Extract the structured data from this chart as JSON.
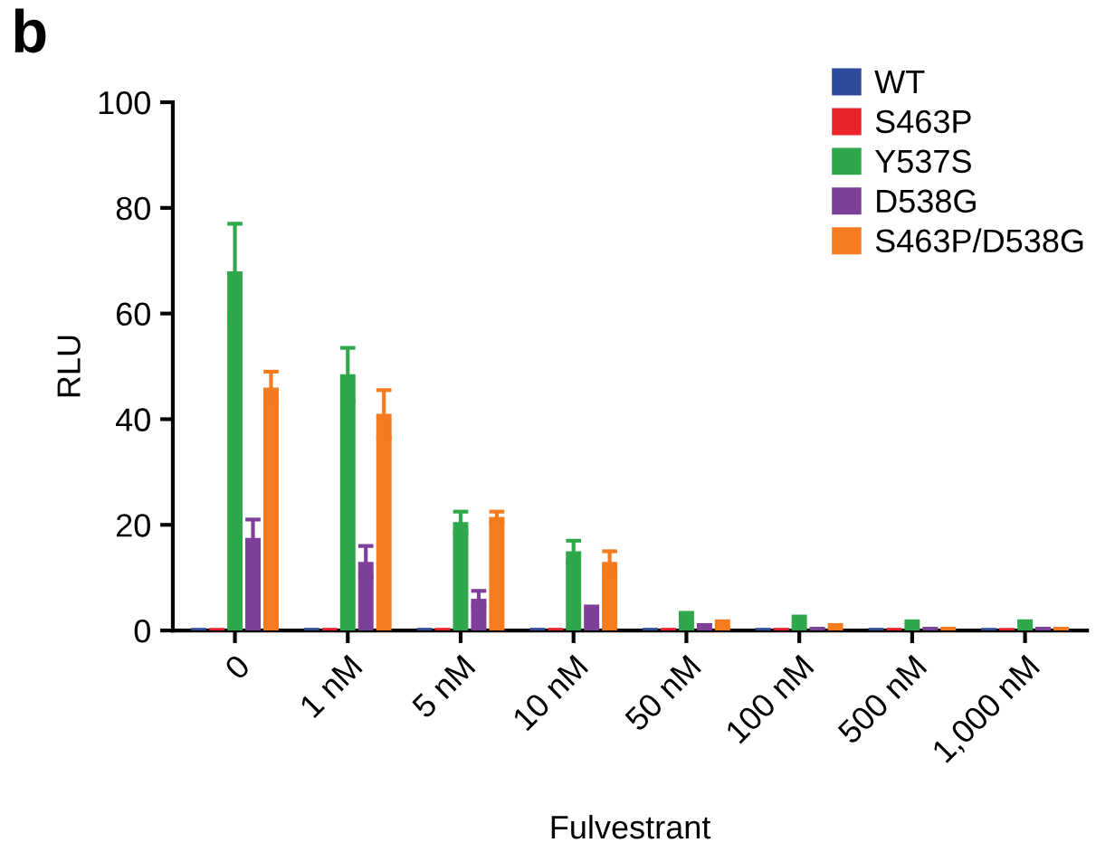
{
  "chart_data": {
    "type": "bar",
    "xlabel": "Fulvestrant",
    "ylabel": "RLU",
    "annotations": [
      "b"
    ],
    "categories": [
      "0",
      "1 nM",
      "5 nM",
      "10 nM",
      "50 nM",
      "100 nM",
      "500 nM",
      "1,000 nM"
    ],
    "series": [
      {
        "name": "WT",
        "color": "#2e4a9b",
        "values": [
          0.5,
          0.5,
          0.5,
          0.5,
          0.5,
          0.5,
          0.5,
          0.5
        ]
      },
      {
        "name": "S463P",
        "color": "#e8242a",
        "values": [
          0.5,
          0.5,
          0.5,
          0.5,
          0.5,
          0.5,
          0.5,
          0.5
        ]
      },
      {
        "name": "Y537S",
        "color": "#2ea84a",
        "values": [
          68,
          48.5,
          20.5,
          15,
          3.7,
          3,
          2.1,
          2.1
        ],
        "errors": [
          9,
          5,
          2,
          2,
          null,
          null,
          null,
          null
        ]
      },
      {
        "name": "D538G",
        "color": "#7d3f98",
        "values": [
          17.5,
          13,
          6,
          4.9,
          1.4,
          0.7,
          0.7,
          0.7
        ],
        "errors": [
          3.5,
          3,
          1.5,
          null,
          null,
          null,
          null,
          null
        ]
      },
      {
        "name": "S463P/D538G",
        "color": "#f47b20",
        "values": [
          46,
          41,
          21.5,
          13,
          2.1,
          1.4,
          0.7,
          0.7
        ],
        "errors": [
          3,
          4.5,
          1,
          2,
          null,
          null,
          null,
          null
        ]
      }
    ],
    "ylim": [
      0,
      100
    ],
    "yticks": [
      0,
      20,
      40,
      60,
      80,
      100
    ],
    "grid": false,
    "legend": "top right"
  }
}
